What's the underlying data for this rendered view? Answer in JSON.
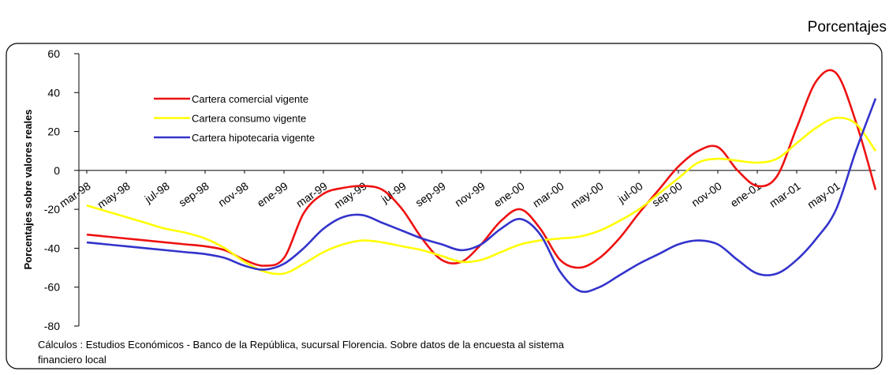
{
  "chart_data": {
    "type": "line",
    "title": "Porcentajes",
    "y_label": "Porcentajes sobre valores reales",
    "note": [
      "Cálculos :  Estudios Económicos - Banco de la República, sucursal Florencia.  Sobre datos de la encuesta al sistema",
      "financiero local"
    ],
    "categories": [
      "mar-98",
      null,
      "may-98",
      null,
      "jul-98",
      null,
      "sep-98",
      null,
      "nov-98",
      null,
      "ene-99",
      null,
      "mar-99",
      null,
      "may-99",
      null,
      "jul-99",
      null,
      "sep-99",
      null,
      "nov-99",
      null,
      "ene-00",
      null,
      "mar-00",
      null,
      "may-00",
      null,
      "jul-00",
      null,
      "sep-00",
      null,
      "nov-00",
      null,
      "ene-01",
      null,
      "mar-01",
      null,
      "may-01",
      null,
      null
    ],
    "series": [
      {
        "name": "Cartera comercial vigente",
        "color": "#ee1111",
        "values": [
          -33,
          -34,
          -35,
          -36,
          -37,
          -38,
          -39,
          -41,
          -46,
          -49,
          -45,
          -22,
          -12,
          -9,
          -8,
          -10,
          -20,
          -35,
          -46,
          -47,
          -38,
          -26,
          -20,
          -30,
          -46,
          -50,
          -45,
          -35,
          -22,
          -10,
          2,
          10,
          12,
          0,
          -8,
          -3,
          22,
          46,
          50,
          25,
          -10
        ]
      },
      {
        "name": "Cartera consumo vigente",
        "color": "#ffff00",
        "values": [
          -18,
          -21,
          -24,
          -27,
          -30,
          -32,
          -35,
          -40,
          -47,
          -52,
          -53,
          -48,
          -42,
          -38,
          -36,
          -37,
          -39,
          -41,
          -44,
          -47,
          -46,
          -42,
          -38,
          -36,
          -35,
          -34,
          -31,
          -26,
          -20,
          -12,
          -4,
          4,
          6,
          5,
          4,
          6,
          14,
          22,
          27,
          24,
          10
        ]
      },
      {
        "name": "Cartera hipotecaria vigente",
        "color": "#3333cc",
        "values": [
          -37,
          -38,
          -39,
          -40,
          -41,
          -42,
          -43,
          -45,
          -49,
          -51,
          -48,
          -40,
          -30,
          -24,
          -23,
          -27,
          -31,
          -35,
          -38,
          -41,
          -38,
          -30,
          -25,
          -33,
          -52,
          -62,
          -60,
          -54,
          -48,
          -43,
          -38,
          -36,
          -38,
          -46,
          -53,
          -53,
          -46,
          -35,
          -20,
          10,
          37
        ]
      }
    ],
    "ylim": [
      -80,
      60
    ],
    "yticks": [
      -80,
      -60,
      -40,
      -20,
      0,
      20,
      40,
      60
    ],
    "grid": false,
    "legend": "upper-left"
  }
}
